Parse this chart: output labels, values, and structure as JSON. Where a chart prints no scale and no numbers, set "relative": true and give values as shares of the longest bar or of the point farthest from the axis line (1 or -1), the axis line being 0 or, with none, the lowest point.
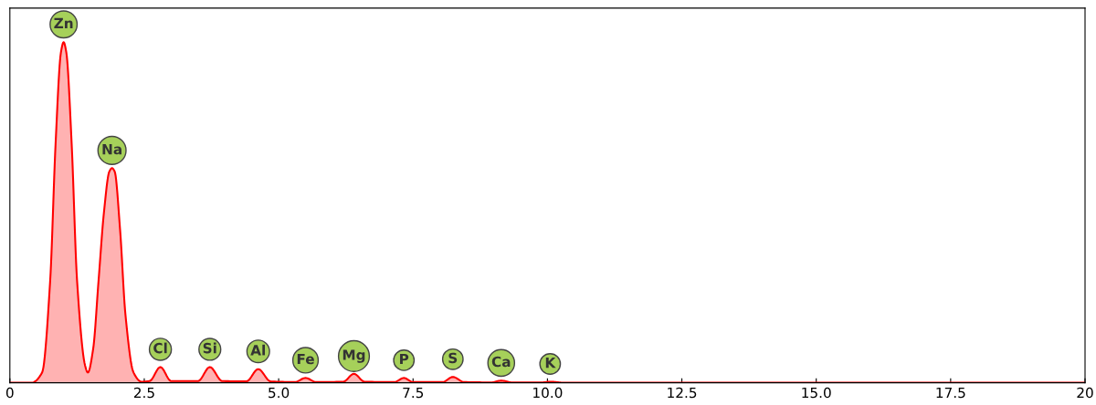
{
  "chart_data": {
    "type": "area",
    "relative": true,
    "tick_labels": "x",
    "grid": false,
    "xlim": [
      0,
      20
    ],
    "xticks": [
      0,
      2.5,
      {
        "value": 5,
        "label": "5.0"
      },
      7.5,
      {
        "value": 10,
        "label": "10.0"
      },
      12.5,
      {
        "value": 15,
        "label": "15.0"
      },
      17.5,
      {
        "value": 20,
        "label": "20"
      }
    ],
    "series": [
      {
        "color": "#ff0000",
        "x": [
          0,
          0.4,
          0.6,
          0.75,
          0.85,
          0.95,
          1.0,
          1.05,
          1.15,
          1.25,
          1.4,
          1.45,
          1.55,
          1.65,
          1.75,
          1.85,
          1.9,
          1.95,
          2.05,
          2.15,
          2.3,
          2.45,
          2.6,
          2.8,
          3.0,
          3.5,
          3.72,
          3.95,
          4.4,
          4.62,
          4.85,
          5.3,
          5.5,
          5.7,
          6.2,
          6.4,
          6.6,
          7.15,
          7.33,
          7.5,
          8.05,
          8.24,
          8.45,
          8.95,
          9.14,
          9.35,
          9.9,
          10.05,
          10.3,
          20
        ],
        "values": [
          0,
          0,
          0.03,
          0.3,
          0.7,
          0.97,
          1.0,
          0.97,
          0.7,
          0.3,
          0.05,
          0.03,
          0.1,
          0.3,
          0.5,
          0.62,
          0.63,
          0.62,
          0.45,
          0.2,
          0.03,
          0.003,
          0.005,
          0.046,
          0.005,
          0.005,
          0.046,
          0.005,
          0.004,
          0.04,
          0.004,
          0.002,
          0.014,
          0.002,
          0.003,
          0.026,
          0.003,
          0.002,
          0.014,
          0.002,
          0.002,
          0.017,
          0.002,
          0.001,
          0.006,
          0.001,
          0.001,
          0.003,
          0,
          0
        ]
      }
    ],
    "annotations": [
      {
        "text": "Zn",
        "x": 1.0,
        "y": 1.0
      },
      {
        "text": "Na",
        "x": 1.9,
        "y": 0.63
      },
      {
        "text": "Cl",
        "x": 2.8,
        "y": 0.046
      },
      {
        "text": "Si",
        "x": 3.72,
        "y": 0.046
      },
      {
        "text": "Al",
        "x": 4.62,
        "y": 0.04
      },
      {
        "text": "Fe",
        "x": 5.5,
        "y": 0.014
      },
      {
        "text": "Mg",
        "x": 6.4,
        "y": 0.026
      },
      {
        "text": "P",
        "x": 7.33,
        "y": 0.014
      },
      {
        "text": "S",
        "x": 8.24,
        "y": 0.017
      },
      {
        "text": "Ca",
        "x": 9.14,
        "y": 0.006
      },
      {
        "text": "K",
        "x": 10.05,
        "y": 0.003
      }
    ]
  }
}
